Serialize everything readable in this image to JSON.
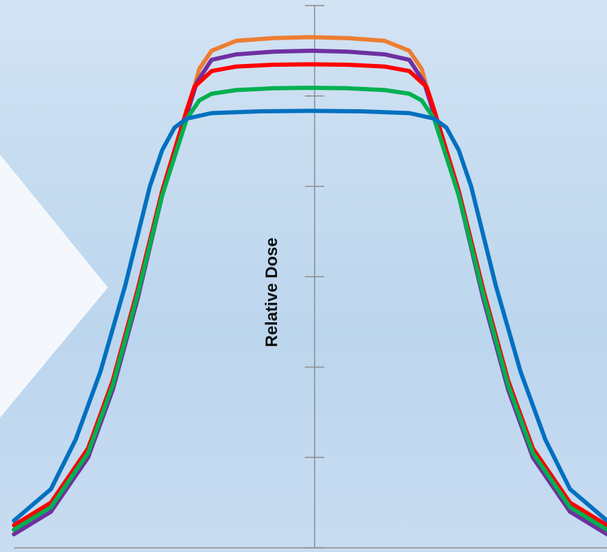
{
  "chart_data": {
    "type": "line",
    "title": "",
    "xlabel": "",
    "ylabel": "Relative Dose",
    "xlim": [
      -1.2,
      1.2
    ],
    "ylim": [
      0,
      1.2
    ],
    "grid": false,
    "legend": "none",
    "y_ticks": [
      0,
      0.2,
      0.4,
      0.6,
      0.8,
      1.0,
      1.2
    ],
    "series": [
      {
        "color": "#ed7d31",
        "points": [
          [
            -1.2,
            0.04
          ],
          [
            -1.05,
            0.09
          ],
          [
            -0.9,
            0.21
          ],
          [
            -0.8,
            0.36
          ],
          [
            -0.7,
            0.56
          ],
          [
            -0.6,
            0.78
          ],
          [
            -0.5,
            0.96
          ],
          [
            -0.45,
            1.06
          ],
          [
            -0.4,
            1.1
          ],
          [
            -0.3,
            1.122
          ],
          [
            -0.15,
            1.128
          ],
          [
            0,
            1.13
          ],
          [
            0.15,
            1.128
          ],
          [
            0.3,
            1.122
          ],
          [
            0.4,
            1.1
          ],
          [
            0.45,
            1.06
          ],
          [
            0.5,
            0.96
          ],
          [
            0.6,
            0.78
          ],
          [
            0.7,
            0.56
          ],
          [
            0.8,
            0.36
          ],
          [
            0.9,
            0.21
          ],
          [
            1.05,
            0.09
          ],
          [
            1.2,
            0.04
          ]
        ]
      },
      {
        "color": "#7030a0",
        "points": [
          [
            -1.2,
            0.03
          ],
          [
            -1.05,
            0.08
          ],
          [
            -0.9,
            0.2
          ],
          [
            -0.8,
            0.35
          ],
          [
            -0.7,
            0.55
          ],
          [
            -0.6,
            0.78
          ],
          [
            -0.5,
            0.96
          ],
          [
            -0.46,
            1.03
          ],
          [
            -0.4,
            1.08
          ],
          [
            -0.3,
            1.092
          ],
          [
            -0.15,
            1.098
          ],
          [
            0,
            1.1
          ],
          [
            0.15,
            1.098
          ],
          [
            0.3,
            1.092
          ],
          [
            0.4,
            1.08
          ],
          [
            0.46,
            1.03
          ],
          [
            0.5,
            0.96
          ],
          [
            0.6,
            0.78
          ],
          [
            0.7,
            0.55
          ],
          [
            0.8,
            0.35
          ],
          [
            0.9,
            0.2
          ],
          [
            1.05,
            0.08
          ],
          [
            1.2,
            0.03
          ]
        ]
      },
      {
        "color": "#ff0000",
        "points": [
          [
            -1.2,
            0.05
          ],
          [
            -1.05,
            0.1
          ],
          [
            -0.9,
            0.22
          ],
          [
            -0.8,
            0.37
          ],
          [
            -0.7,
            0.57
          ],
          [
            -0.6,
            0.79
          ],
          [
            -0.5,
            0.97
          ],
          [
            -0.47,
            1.02
          ],
          [
            -0.4,
            1.055
          ],
          [
            -0.3,
            1.065
          ],
          [
            -0.15,
            1.069
          ],
          [
            0,
            1.07
          ],
          [
            0.15,
            1.069
          ],
          [
            0.3,
            1.065
          ],
          [
            0.4,
            1.055
          ],
          [
            0.47,
            1.02
          ],
          [
            0.5,
            0.97
          ],
          [
            0.6,
            0.79
          ],
          [
            0.7,
            0.57
          ],
          [
            0.8,
            0.37
          ],
          [
            0.9,
            0.22
          ],
          [
            1.05,
            0.1
          ],
          [
            1.2,
            0.05
          ]
        ]
      },
      {
        "color": "#00b050",
        "points": [
          [
            -1.2,
            0.04
          ],
          [
            -1.05,
            0.09
          ],
          [
            -0.9,
            0.21
          ],
          [
            -0.8,
            0.36
          ],
          [
            -0.7,
            0.56
          ],
          [
            -0.6,
            0.78
          ],
          [
            -0.5,
            0.95
          ],
          [
            -0.45,
            0.99
          ],
          [
            -0.4,
            1.005
          ],
          [
            -0.3,
            1.013
          ],
          [
            -0.15,
            1.017
          ],
          [
            0,
            1.018
          ],
          [
            0.15,
            1.017
          ],
          [
            0.3,
            1.013
          ],
          [
            0.4,
            1.005
          ],
          [
            0.45,
            0.99
          ],
          [
            0.5,
            0.95
          ],
          [
            0.6,
            0.78
          ],
          [
            0.7,
            0.56
          ],
          [
            0.8,
            0.36
          ],
          [
            0.9,
            0.21
          ],
          [
            1.05,
            0.09
          ],
          [
            1.2,
            0.04
          ]
        ]
      },
      {
        "color": "#0070c0",
        "points": [
          [
            -1.2,
            0.06
          ],
          [
            -1.05,
            0.13
          ],
          [
            -0.95,
            0.24
          ],
          [
            -0.85,
            0.39
          ],
          [
            -0.75,
            0.58
          ],
          [
            -0.65,
            0.8
          ],
          [
            -0.6,
            0.88
          ],
          [
            -0.55,
            0.93
          ],
          [
            -0.5,
            0.95
          ],
          [
            -0.4,
            0.962
          ],
          [
            -0.2,
            0.966
          ],
          [
            0,
            0.967
          ],
          [
            0.2,
            0.966
          ],
          [
            0.4,
            0.962
          ],
          [
            0.5,
            0.95
          ],
          [
            0.55,
            0.93
          ],
          [
            0.6,
            0.88
          ],
          [
            0.65,
            0.8
          ],
          [
            0.75,
            0.58
          ],
          [
            0.85,
            0.39
          ],
          [
            0.95,
            0.24
          ],
          [
            1.05,
            0.13
          ],
          [
            1.2,
            0.06
          ]
        ]
      }
    ]
  }
}
